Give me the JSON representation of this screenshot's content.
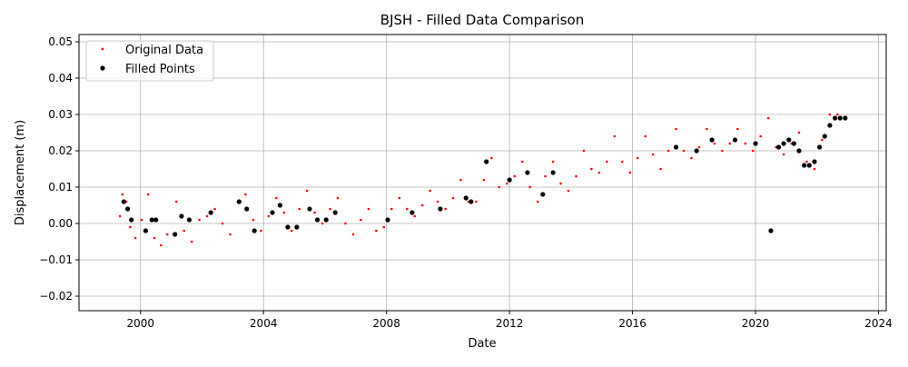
{
  "chart_data": {
    "type": "scatter",
    "title": "BJSH - Filled Data Comparison",
    "xlabel": "Date",
    "ylabel": "Displacement (m)",
    "xlim": [
      "1998-01-01",
      "2024-04-01"
    ],
    "ylim": [
      -0.024,
      0.052
    ],
    "xticks": [
      "2000",
      "2004",
      "2008",
      "2012",
      "2016",
      "2020",
      "2024"
    ],
    "yticks": [
      "−0.02",
      "−0.01",
      "0.00",
      "0.01",
      "0.02",
      "0.03",
      "0.04",
      "0.05"
    ],
    "grid": true,
    "legend_position": "upper-left",
    "series": [
      {
        "name": "Original Data",
        "color": "#ff0000",
        "marker": "dot",
        "x": [
          "1999-05-01",
          "1999-06-01",
          "1999-07-15",
          "1999-09-01",
          "1999-11-01",
          "2000-01-15",
          "2000-04-01",
          "2000-06-15",
          "2000-09-01",
          "2000-11-15",
          "2001-03-01",
          "2001-06-01",
          "2001-09-01",
          "2001-12-01",
          "2002-03-01",
          "2002-06-01",
          "2002-09-01",
          "2002-12-01",
          "2003-03-01",
          "2003-06-01",
          "2003-09-01",
          "2003-12-01",
          "2004-03-01",
          "2004-06-01",
          "2004-09-01",
          "2004-12-01",
          "2005-03-01",
          "2005-06-01",
          "2005-09-01",
          "2005-12-01",
          "2006-03-01",
          "2006-06-01",
          "2006-09-01",
          "2006-12-01",
          "2007-03-01",
          "2007-06-01",
          "2007-09-01",
          "2007-12-01",
          "2008-03-01",
          "2008-06-01",
          "2008-09-01",
          "2008-12-01",
          "2009-03-01",
          "2009-06-01",
          "2009-09-01",
          "2009-12-01",
          "2010-03-01",
          "2010-06-01",
          "2010-09-01",
          "2010-12-01",
          "2011-03-01",
          "2011-06-01",
          "2011-09-01",
          "2011-12-01",
          "2012-03-01",
          "2012-06-01",
          "2012-09-01",
          "2012-12-01",
          "2013-03-01",
          "2013-06-01",
          "2013-09-01",
          "2013-12-01",
          "2014-03-01",
          "2014-06-01",
          "2014-09-01",
          "2014-12-01",
          "2015-03-01",
          "2015-06-01",
          "2015-09-01",
          "2015-12-01",
          "2016-03-01",
          "2016-06-01",
          "2016-09-01",
          "2016-12-01",
          "2017-03-01",
          "2017-06-01",
          "2017-09-01",
          "2017-12-01",
          "2018-03-01",
          "2018-06-01",
          "2018-09-01",
          "2018-12-01",
          "2019-03-01",
          "2019-06-01",
          "2019-09-01",
          "2019-12-01",
          "2020-03-01",
          "2020-06-01",
          "2020-09-01",
          "2020-12-01",
          "2021-03-01",
          "2021-06-01",
          "2021-09-01",
          "2021-12-01",
          "2022-03-01",
          "2022-06-01",
          "2022-09-01",
          "2022-12-01"
        ],
        "y": [
          0.002,
          0.008,
          0.006,
          -0.001,
          -0.004,
          0.001,
          0.008,
          -0.004,
          -0.006,
          -0.003,
          0.006,
          -0.002,
          -0.005,
          0.001,
          0.002,
          0.004,
          0.0,
          -0.003,
          0.006,
          0.008,
          0.001,
          -0.002,
          0.002,
          0.007,
          0.003,
          -0.002,
          0.004,
          0.009,
          0.003,
          0.0,
          0.004,
          0.007,
          0.0,
          -0.003,
          0.001,
          0.004,
          -0.002,
          -0.001,
          0.004,
          0.007,
          0.004,
          0.002,
          0.005,
          0.009,
          0.006,
          0.004,
          0.007,
          0.012,
          0.006,
          0.006,
          0.012,
          0.018,
          0.01,
          0.011,
          0.013,
          0.017,
          0.01,
          0.006,
          0.013,
          0.017,
          0.011,
          0.009,
          0.013,
          0.02,
          0.015,
          0.014,
          0.017,
          0.024,
          0.017,
          0.014,
          0.018,
          0.024,
          0.019,
          0.015,
          0.02,
          0.026,
          0.02,
          0.018,
          0.021,
          0.026,
          0.022,
          0.02,
          0.022,
          0.026,
          0.022,
          0.02,
          0.024,
          0.029,
          0.021,
          0.019,
          0.022,
          0.025,
          0.017,
          0.015,
          0.023,
          0.03,
          0.03,
          0.029
        ]
      },
      {
        "name": "Filled Points",
        "color": "#000000",
        "marker": "dot",
        "x": [
          "1999-06-15",
          "1999-08-01",
          "1999-09-15",
          "2000-03-01",
          "2000-05-15",
          "2000-07-01",
          "2001-02-15",
          "2001-05-01",
          "2001-08-01",
          "2002-04-15",
          "2003-03-15",
          "2003-06-15",
          "2003-09-15",
          "2004-04-15",
          "2004-07-15",
          "2004-10-15",
          "2005-02-01",
          "2005-07-01",
          "2005-10-01",
          "2006-01-15",
          "2006-05-01",
          "2008-01-15",
          "2008-11-01",
          "2009-10-01",
          "2010-08-01",
          "2010-10-01",
          "2011-04-01",
          "2012-01-01",
          "2012-08-01",
          "2013-02-01",
          "2013-06-01",
          "2017-06-01",
          "2018-02-01",
          "2018-08-01",
          "2019-05-01",
          "2020-01-01",
          "2020-07-01",
          "2020-10-01",
          "2020-12-01",
          "2021-02-01",
          "2021-04-01",
          "2021-06-01",
          "2021-08-01",
          "2021-10-01",
          "2021-12-01",
          "2022-02-01",
          "2022-04-01",
          "2022-06-01",
          "2022-08-01",
          "2022-10-01",
          "2022-12-01"
        ],
        "y": [
          0.006,
          0.004,
          0.001,
          -0.002,
          0.001,
          0.001,
          -0.003,
          0.002,
          0.001,
          0.003,
          0.006,
          0.004,
          -0.002,
          0.003,
          0.005,
          -0.001,
          -0.001,
          0.004,
          0.001,
          0.001,
          0.003,
          0.001,
          0.003,
          0.004,
          0.007,
          0.006,
          0.017,
          0.012,
          0.014,
          0.008,
          0.014,
          0.021,
          0.02,
          0.023,
          0.023,
          0.022,
          -0.002,
          0.021,
          0.022,
          0.023,
          0.022,
          0.02,
          0.016,
          0.016,
          0.017,
          0.021,
          0.024,
          0.027,
          0.029,
          0.029,
          0.029
        ]
      }
    ]
  }
}
